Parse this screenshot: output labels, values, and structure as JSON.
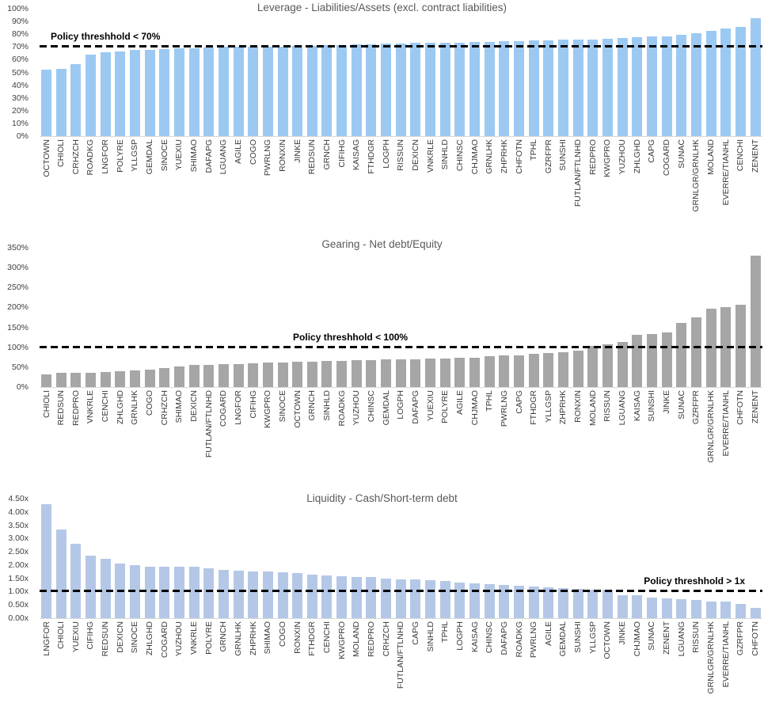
{
  "page": {
    "background": "#ffffff",
    "baseline_color": "#d9d9d9",
    "threshold_line_color": "#000000"
  },
  "chart_data": [
    {
      "type": "bar",
      "title": "Leverage - Liabilities/Assets (excl. contract liabilities)",
      "threshold_label": "Policy threshhold < 70%",
      "threshold_value": 70,
      "bar_color": "#9CC9F2",
      "ymax": 100,
      "ylim": [
        0,
        100
      ],
      "grid": false,
      "yticks": [
        {
          "label": "0%",
          "value": 0
        },
        {
          "label": "10%",
          "value": 10
        },
        {
          "label": "20%",
          "value": 20
        },
        {
          "label": "30%",
          "value": 30
        },
        {
          "label": "40%",
          "value": 40
        },
        {
          "label": "50%",
          "value": 50
        },
        {
          "label": "60%",
          "value": 60
        },
        {
          "label": "70%",
          "value": 70
        },
        {
          "label": "80%",
          "value": 80
        },
        {
          "label": "90%",
          "value": 90
        },
        {
          "label": "100%",
          "value": 100
        }
      ],
      "categories": [
        "OCTOWN",
        "CHIOLI",
        "CRHZCH",
        "ROADKG",
        "LNGFOR",
        "POLYRE",
        "YLLGSP",
        "GEMDAL",
        "SINOCE",
        "YUEXIU",
        "SHIMAO",
        "DAFAPG",
        "LGUANG",
        "AGILE",
        "COGO",
        "PWRLNG",
        "RONXIN",
        "JINKE",
        "REDSUN",
        "GRNCH",
        "CIFIHG",
        "KAISAG",
        "FTHDGR",
        "LOGPH",
        "RISSUN",
        "DEXICN",
        "VNKRLE",
        "SINHLD",
        "CHINSC",
        "CHJMAO",
        "GRNLHK",
        "ZHPRHK",
        "CHFOTN",
        "TPHL",
        "GZRFPR",
        "SUNSHI",
        "FUTLAN/FTLNHD",
        "REDPRO",
        "KWGPRO",
        "YUZHOU",
        "ZHLGHD",
        "CAPG",
        "COGARD",
        "SUNAC",
        "GRNLGR/GRNLHK",
        "MOLAND",
        "EVERRE/TIANHL",
        "CENCHI",
        "ZENENT"
      ],
      "values": [
        52,
        53,
        56.5,
        64,
        66,
        66.5,
        67.5,
        68,
        68.5,
        69,
        69,
        69.5,
        70,
        70,
        70,
        70.5,
        70.5,
        71,
        71,
        71.5,
        71.5,
        72,
        72,
        72.5,
        72.5,
        73,
        73,
        73.5,
        73.5,
        74,
        74,
        74.5,
        74.5,
        75,
        75,
        75.5,
        76,
        76,
        76.5,
        77,
        77.5,
        78,
        78.5,
        79.5,
        80.5,
        82.5,
        84.5,
        86,
        92.5
      ]
    },
    {
      "type": "bar",
      "title": "Gearing - Net debt/Equity",
      "threshold_label": "Policy threshhold < 100%",
      "threshold_value": 100,
      "bar_color": "#A6A6A6",
      "ymax": 350,
      "ylim": [
        0,
        350
      ],
      "grid": false,
      "yticks": [
        {
          "label": "0%",
          "value": 0
        },
        {
          "label": "50%",
          "value": 50
        },
        {
          "label": "100%",
          "value": 100
        },
        {
          "label": "150%",
          "value": 150
        },
        {
          "label": "200%",
          "value": 200
        },
        {
          "label": "250%",
          "value": 250
        },
        {
          "label": "300%",
          "value": 300
        },
        {
          "label": "350%",
          "value": 350
        }
      ],
      "categories": [
        "CHIOLI",
        "REDSUN",
        "REDPRO",
        "VNKRLE",
        "CENCHI",
        "ZHLGHD",
        "GRNLHK",
        "COGO",
        "CRHZCH",
        "SHIMAO",
        "DEXICN",
        "FUTLAN/FTLNHD",
        "COGARD",
        "LNGFOR",
        "CIFIHG",
        "KWGPRO",
        "SINOCE",
        "OCTOWN",
        "GRNCH",
        "SINHLD",
        "ROADKG",
        "YUZHOU",
        "CHINSC",
        "GEMDAL",
        "LOGPH",
        "DAFAPG",
        "YUEXIU",
        "POLYRE",
        "AGILE",
        "CHJMAO",
        "TPHL",
        "PWRLNG",
        "CAPG",
        "FTHDGR",
        "YLLGSP",
        "ZHPRHK",
        "RONXIN",
        "MOLAND",
        "RISSUN",
        "LGUANG",
        "KAISAG",
        "SUNSHI",
        "JINKE",
        "SUNAC",
        "GZRFPR",
        "GRNLGR/GRNLHK",
        "EVERRE/TIANHL",
        "CHFOTN",
        "ZENENT"
      ],
      "values": [
        32,
        35,
        35,
        36,
        38,
        40,
        42,
        44,
        47,
        52,
        55,
        56,
        57,
        58,
        60,
        61,
        62,
        63,
        64,
        65,
        66,
        67,
        68,
        69,
        70,
        70,
        71,
        72,
        73,
        74,
        77,
        79,
        80,
        83,
        86,
        88,
        91,
        104,
        108,
        113,
        131,
        133,
        137,
        161,
        175,
        197,
        200,
        206,
        331
      ]
    },
    {
      "type": "bar",
      "title": "Liquidity - Cash/Short-term debt",
      "threshold_label": "Policy threshhold > 1x",
      "threshold_value": 1,
      "bar_color": "#B4C7E7",
      "ymax": 4.5,
      "ylim": [
        0,
        4.5
      ],
      "grid": false,
      "yticks": [
        {
          "label": "0.00x",
          "value": 0
        },
        {
          "label": "0.50x",
          "value": 0.5
        },
        {
          "label": "1.00x",
          "value": 1
        },
        {
          "label": "1.50x",
          "value": 1.5
        },
        {
          "label": "2.00x",
          "value": 2
        },
        {
          "label": "2.50x",
          "value": 2.5
        },
        {
          "label": "3.00x",
          "value": 3
        },
        {
          "label": "3.50x",
          "value": 3.5
        },
        {
          "label": "4.00x",
          "value": 4
        },
        {
          "label": "4.50x",
          "value": 4.5
        }
      ],
      "categories": [
        "LNGFOR",
        "CHIOLI",
        "YUEXIU",
        "CIFIHG",
        "REDSUN",
        "DEXICN",
        "SINOCE",
        "ZHLGHD",
        "COGARD",
        "YUZHOU",
        "VNKRLE",
        "POLYRE",
        "GRNCH",
        "GRNLHK",
        "ZHPRHK",
        "SHIMAO",
        "COGO",
        "RONXIN",
        "FTHDGR",
        "CENCHI",
        "KWGPRO",
        "MOLAND",
        "REDPRO",
        "CRHZCH",
        "FUTLAN/FTLNHD",
        "CAPG",
        "SINHLD",
        "TPHL",
        "LOGPH",
        "KAISAG",
        "CHINSC",
        "DAFAPG",
        "ROADKG",
        "PWRLNG",
        "AGILE",
        "GEMDAL",
        "SUNSHI",
        "YLLGSP",
        "OCTOWN",
        "JINKE",
        "CHJMAO",
        "SUNAC",
        "ZENENT",
        "LGUANG",
        "RISSUN",
        "GRNLGR/GRNLHK",
        "EVERRE/TIANHL",
        "GZRFPR",
        "CHFOTN"
      ],
      "values": [
        4.3,
        3.35,
        2.8,
        2.35,
        2.25,
        2.05,
        2.0,
        1.95,
        1.95,
        1.95,
        1.93,
        1.88,
        1.83,
        1.78,
        1.77,
        1.75,
        1.73,
        1.7,
        1.63,
        1.6,
        1.59,
        1.56,
        1.55,
        1.5,
        1.47,
        1.45,
        1.42,
        1.39,
        1.35,
        1.31,
        1.27,
        1.24,
        1.21,
        1.18,
        1.16,
        1.13,
        1.11,
        1.08,
        1.06,
        0.86,
        0.85,
        0.77,
        0.74,
        0.71,
        0.69,
        0.64,
        0.62,
        0.54,
        0.38
      ]
    }
  ]
}
